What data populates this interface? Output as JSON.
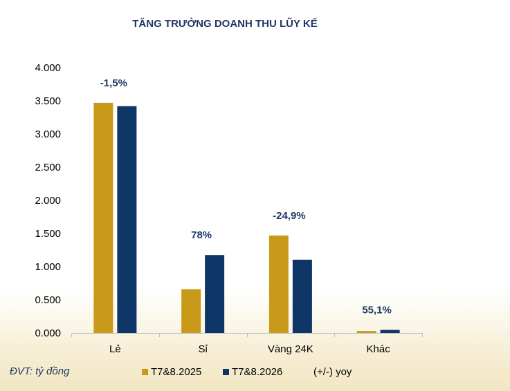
{
  "chart_data": {
    "type": "bar",
    "title": "TĂNG TRƯỞNG DOANH THU LŨY KẾ",
    "categories": [
      "Lẻ",
      "Sỉ",
      "Vàng 24K",
      "Khác"
    ],
    "series": [
      {
        "name": "T7&8.2025",
        "color": "#c9991a",
        "values": [
          3470,
          660,
          1470,
          30
        ]
      },
      {
        "name": "T7&8.2026",
        "color": "#0d3566",
        "values": [
          3420,
          1175,
          1105,
          46
        ]
      }
    ],
    "annotations": [
      "-1,5%",
      "78%",
      "-24,9%",
      "55,1%"
    ],
    "yoy_label": "(+/-) yoy",
    "ylim": [
      0,
      4000
    ],
    "y_ticks": [
      "0.000",
      "0.500",
      "1.000",
      "1.500",
      "2.000",
      "2.500",
      "3.000",
      "3.500",
      "4.000"
    ],
    "grid": false,
    "legend": "bottom",
    "unit_note": "ĐVT: tỷ đồng"
  }
}
